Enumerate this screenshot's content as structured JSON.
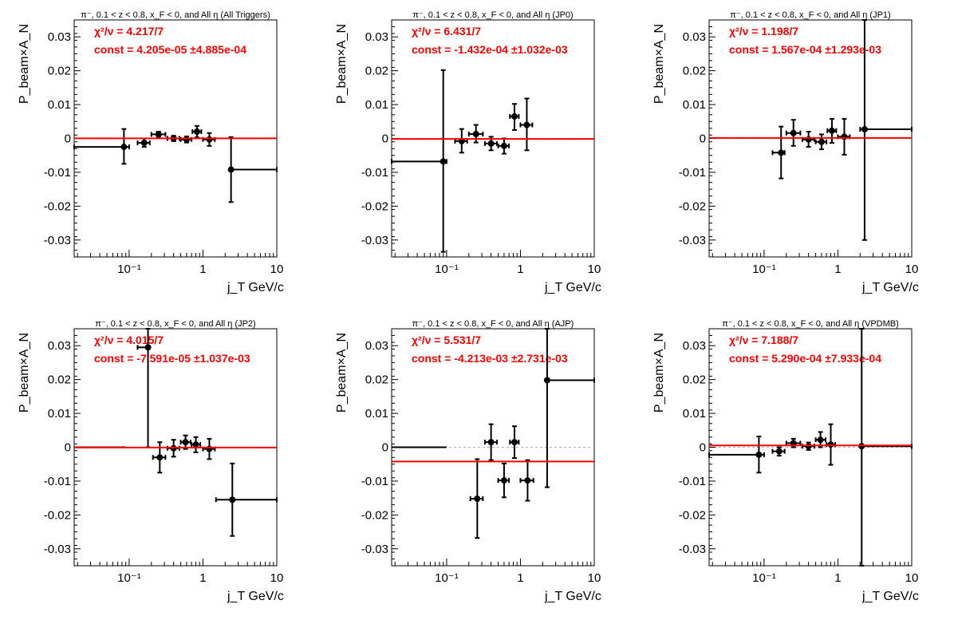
{
  "colors": {
    "fit": "#ff0000",
    "points": "#000000",
    "zero_line": "#b0b0b0",
    "frame": "#000000"
  },
  "chart_data": [
    {
      "type": "scatter",
      "title": "π⁻, 0.1 < z < 0.8, x_F < 0, and All η (All Triggers)",
      "xlabel": "j_T GeV/c",
      "ylabel": "P_beam×A_N",
      "xscale": "log",
      "xlim": [
        0.018,
        10
      ],
      "ylim": [
        -0.035,
        0.035
      ],
      "yticks": [
        -0.03,
        -0.02,
        -0.01,
        0,
        0.01,
        0.02,
        0.03
      ],
      "xtick_labels": [
        "10⁻¹",
        "1",
        "10"
      ],
      "stats": {
        "chi2": "χ²/ν = 4.217/7",
        "const": "const = 4.205e-05  ±4.885e-04"
      },
      "fit_value": 4.2e-05,
      "points": [
        {
          "x": 0.085,
          "y": -0.0025,
          "xlo": 0.018,
          "xhi": 0.1,
          "ylo": -0.0075,
          "yhi": 0.0028
        },
        {
          "x": 0.16,
          "y": -0.0013,
          "xlo": 0.13,
          "xhi": 0.19,
          "ylo": -0.0025,
          "yhi": 0.0
        },
        {
          "x": 0.25,
          "y": 0.0012,
          "xlo": 0.2,
          "xhi": 0.31,
          "ylo": 0.0003,
          "yhi": 0.002
        },
        {
          "x": 0.4,
          "y": 0.0,
          "xlo": 0.33,
          "xhi": 0.48,
          "ylo": -0.0008,
          "yhi": 0.0008
        },
        {
          "x": 0.6,
          "y": -0.0003,
          "xlo": 0.5,
          "xhi": 0.7,
          "ylo": -0.0012,
          "yhi": 0.0006
        },
        {
          "x": 0.83,
          "y": 0.002,
          "xlo": 0.72,
          "xhi": 0.95,
          "ylo": 0.0003,
          "yhi": 0.0037
        },
        {
          "x": 1.22,
          "y": -0.0003,
          "xlo": 1.0,
          "xhi": 1.45,
          "ylo": -0.0022,
          "yhi": 0.0016
        },
        {
          "x": 2.4,
          "y": -0.0092,
          "xlo": 2.3,
          "xhi": 10,
          "ylo": -0.0188,
          "yhi": 0.0004
        }
      ]
    },
    {
      "type": "scatter",
      "title": "π⁻, 0.1 < z < 0.8, x_F < 0, and All η (JP0)",
      "xlabel": "j_T GeV/c",
      "ylabel": "P_beam×A_N",
      "xscale": "log",
      "xlim": [
        0.018,
        10
      ],
      "ylim": [
        -0.035,
        0.035
      ],
      "yticks": [
        -0.03,
        -0.02,
        -0.01,
        0,
        0.01,
        0.02,
        0.03
      ],
      "xtick_labels": [
        "10⁻¹",
        "1",
        "10"
      ],
      "stats": {
        "chi2": "χ²/ν = 6.431/7",
        "const": "const = -1.432e-04  ±1.032e-03"
      },
      "fit_value": -0.00014,
      "points": [
        {
          "x": 0.09,
          "y": -0.0068,
          "xlo": 0.018,
          "xhi": 0.1,
          "ylo": -0.0335,
          "yhi": 0.0202
        },
        {
          "x": 0.16,
          "y": -0.0008,
          "xlo": 0.13,
          "xhi": 0.19,
          "ylo": -0.0042,
          "yhi": 0.0028
        },
        {
          "x": 0.25,
          "y": 0.0013,
          "xlo": 0.2,
          "xhi": 0.31,
          "ylo": -0.0012,
          "yhi": 0.004
        },
        {
          "x": 0.4,
          "y": -0.0015,
          "xlo": 0.33,
          "xhi": 0.48,
          "ylo": -0.0035,
          "yhi": 0.0005
        },
        {
          "x": 0.6,
          "y": -0.0022,
          "xlo": 0.5,
          "xhi": 0.7,
          "ylo": -0.0045,
          "yhi": 0.0
        },
        {
          "x": 0.83,
          "y": 0.0065,
          "xlo": 0.72,
          "xhi": 0.95,
          "ylo": 0.0025,
          "yhi": 0.0102
        },
        {
          "x": 1.22,
          "y": 0.004,
          "xlo": 1.0,
          "xhi": 1.45,
          "ylo": -0.0035,
          "yhi": 0.0118
        }
      ]
    },
    {
      "type": "scatter",
      "title": "π⁻, 0.1 < z < 0.8, x_F < 0, and All η (JP1)",
      "xlabel": "j_T GeV/c",
      "ylabel": "P_beam×A_N",
      "xscale": "log",
      "xlim": [
        0.018,
        10
      ],
      "ylim": [
        -0.035,
        0.035
      ],
      "yticks": [
        -0.03,
        -0.02,
        -0.01,
        0,
        0.01,
        0.02,
        0.03
      ],
      "xtick_labels": [
        "10⁻¹",
        "1",
        "10"
      ],
      "stats": {
        "chi2": "χ²/ν = 1.198/7",
        "const": "const = 1.567e-04  ±1.293e-03"
      },
      "fit_value": 0.00016,
      "points": [
        {
          "x": 0.17,
          "y": -0.0042,
          "xlo": 0.13,
          "xhi": 0.19,
          "ylo": -0.0118,
          "yhi": 0.0035
        },
        {
          "x": 0.25,
          "y": 0.0016,
          "xlo": 0.2,
          "xhi": 0.31,
          "ylo": -0.0022,
          "yhi": 0.0055
        },
        {
          "x": 0.4,
          "y": -0.0003,
          "xlo": 0.33,
          "xhi": 0.48,
          "ylo": -0.0025,
          "yhi": 0.002
        },
        {
          "x": 0.6,
          "y": -0.001,
          "xlo": 0.5,
          "xhi": 0.7,
          "ylo": -0.0032,
          "yhi": 0.0012
        },
        {
          "x": 0.83,
          "y": 0.0023,
          "xlo": 0.72,
          "xhi": 0.95,
          "ylo": -0.0013,
          "yhi": 0.0058
        },
        {
          "x": 1.22,
          "y": 0.0005,
          "xlo": 1.0,
          "xhi": 1.45,
          "ylo": -0.0048,
          "yhi": 0.0058
        },
        {
          "x": 2.3,
          "y": 0.0027,
          "xlo": 2.0,
          "xhi": 10,
          "ylo": -0.03,
          "yhi": 0.035
        }
      ]
    },
    {
      "type": "scatter",
      "title": "π⁻, 0.1 < z < 0.8, x_F < 0, and All η (JP2)",
      "xlabel": "j_T GeV/c",
      "ylabel": "P_beam×A_N",
      "xscale": "log",
      "xlim": [
        0.018,
        10
      ],
      "ylim": [
        -0.035,
        0.035
      ],
      "yticks": [
        -0.03,
        -0.02,
        -0.01,
        0,
        0.01,
        0.02,
        0.03
      ],
      "xtick_labels": [
        "10⁻¹",
        "1",
        "10"
      ],
      "stats": {
        "chi2": "χ²/ν = 4.015/7",
        "const": "const = -7.591e-05  ±1.037e-03"
      },
      "fit_value": -7.6e-05,
      "points": [
        {
          "x": 0.18,
          "y": 0.0295,
          "xlo": 0.13,
          "xhi": 0.19,
          "ylo": 0.0,
          "yhi": 0.035
        },
        {
          "x": 0.26,
          "y": -0.003,
          "xlo": 0.21,
          "xhi": 0.31,
          "ylo": -0.0075,
          "yhi": 0.0015
        },
        {
          "x": 0.4,
          "y": -0.0003,
          "xlo": 0.33,
          "xhi": 0.48,
          "ylo": -0.0028,
          "yhi": 0.0022
        },
        {
          "x": 0.58,
          "y": 0.0015,
          "xlo": 0.5,
          "xhi": 0.68,
          "ylo": -0.0005,
          "yhi": 0.0035
        },
        {
          "x": 0.8,
          "y": 0.0008,
          "xlo": 0.7,
          "xhi": 0.92,
          "ylo": -0.0015,
          "yhi": 0.003
        },
        {
          "x": 1.22,
          "y": -0.0005,
          "xlo": 1.0,
          "xhi": 1.45,
          "ylo": -0.0035,
          "yhi": 0.0025
        },
        {
          "x": 2.5,
          "y": -0.0155,
          "xlo": 1.5,
          "xhi": 10,
          "ylo": -0.0262,
          "yhi": -0.0048
        }
      ],
      "extra_segments": [
        {
          "xlo": 0.018,
          "xhi": 0.09,
          "y": 0.0
        }
      ]
    },
    {
      "type": "scatter",
      "title": "π⁻, 0.1 < z < 0.8, x_F < 0, and All η (AJP)",
      "xlabel": "j_T GeV/c",
      "ylabel": "P_beam×A_N",
      "xscale": "log",
      "xlim": [
        0.018,
        10
      ],
      "ylim": [
        -0.035,
        0.035
      ],
      "yticks": [
        -0.03,
        -0.02,
        -0.01,
        0,
        0.01,
        0.02,
        0.03
      ],
      "xtick_labels": [
        "10⁻¹",
        "1",
        "10"
      ],
      "stats": {
        "chi2": "χ²/ν = 5.531/7",
        "const": "const = -4.213e-03  ±2.731e-03"
      },
      "fit_value": -0.0042,
      "points": [
        {
          "x": 0.26,
          "y": -0.0152,
          "xlo": 0.21,
          "xhi": 0.31,
          "ylo": -0.0268,
          "yhi": -0.0035
        },
        {
          "x": 0.4,
          "y": 0.0015,
          "xlo": 0.33,
          "xhi": 0.48,
          "ylo": -0.0038,
          "yhi": 0.0068
        },
        {
          "x": 0.6,
          "y": -0.0098,
          "xlo": 0.5,
          "xhi": 0.7,
          "ylo": -0.0148,
          "yhi": -0.0048
        },
        {
          "x": 0.83,
          "y": 0.0015,
          "xlo": 0.72,
          "xhi": 0.95,
          "ylo": -0.0032,
          "yhi": 0.0062
        },
        {
          "x": 1.25,
          "y": -0.0098,
          "xlo": 1.0,
          "xhi": 1.5,
          "ylo": -0.0158,
          "yhi": -0.0038
        },
        {
          "x": 2.3,
          "y": 0.0198,
          "xlo": 2.2,
          "xhi": 10,
          "ylo": -0.0118,
          "yhi": 0.035
        }
      ],
      "extra_segments": [
        {
          "xlo": 0.018,
          "xhi": 0.1,
          "y": 0.0
        }
      ]
    },
    {
      "type": "scatter",
      "title": "π⁻, 0.1 < z < 0.8, x_F < 0, and All η (VPDMB)",
      "xlabel": "j_T GeV/c",
      "ylabel": "P_beam×A_N",
      "xscale": "log",
      "xlim": [
        0.018,
        10
      ],
      "ylim": [
        -0.035,
        0.035
      ],
      "yticks": [
        -0.03,
        -0.02,
        -0.01,
        0,
        0.01,
        0.02,
        0.03
      ],
      "xtick_labels": [
        "10⁻¹",
        "1",
        "10"
      ],
      "stats": {
        "chi2": "χ²/ν = 7.188/7",
        "const": "const = 5.290e-04  ±7.933e-04"
      },
      "fit_value": 0.00053,
      "points": [
        {
          "x": 0.085,
          "y": -0.0022,
          "xlo": 0.018,
          "xhi": 0.1,
          "ylo": -0.0075,
          "yhi": 0.0032
        },
        {
          "x": 0.16,
          "y": -0.0012,
          "xlo": 0.13,
          "xhi": 0.19,
          "ylo": -0.0025,
          "yhi": 0.0
        },
        {
          "x": 0.25,
          "y": 0.0012,
          "xlo": 0.2,
          "xhi": 0.31,
          "ylo": 0.0,
          "yhi": 0.0025
        },
        {
          "x": 0.4,
          "y": 0.0003,
          "xlo": 0.33,
          "xhi": 0.48,
          "ylo": -0.0008,
          "yhi": 0.0014
        },
        {
          "x": 0.58,
          "y": 0.0022,
          "xlo": 0.5,
          "xhi": 0.68,
          "ylo": 0.0,
          "yhi": 0.0045
        },
        {
          "x": 0.8,
          "y": 0.0008,
          "xlo": 0.7,
          "xhi": 0.92,
          "ylo": -0.0052,
          "yhi": 0.0068
        },
        {
          "x": 2.1,
          "y": 0.0003,
          "xlo": 2.0,
          "xhi": 10,
          "ylo": -0.035,
          "yhi": 0.035
        }
      ]
    }
  ]
}
